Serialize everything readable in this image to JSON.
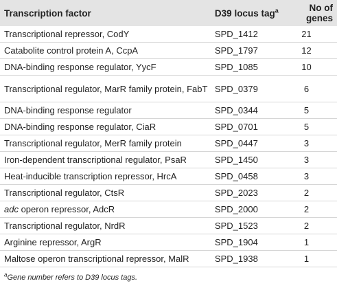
{
  "table": {
    "headers": {
      "tf": "Transcription factor",
      "locus": "D39 locus tag",
      "locus_sup": "a",
      "genes": "No of genes"
    },
    "rows": [
      {
        "tf": "Transcriptional repressor, CodY",
        "locus": "SPD_1412",
        "genes": "21"
      },
      {
        "tf": "Catabolite control protein A, CcpA",
        "locus": "SPD_1797",
        "genes": "12"
      },
      {
        "tf": "DNA-binding response regulator, YycF",
        "locus": "SPD_1085",
        "genes": "10"
      },
      {
        "tf": "Transcriptional regulator, MarR family protein, FabT",
        "locus": "SPD_0379",
        "genes": "6"
      },
      {
        "tf": "DNA-binding response regulator",
        "locus": "SPD_0344",
        "genes": "5"
      },
      {
        "tf": "DNA-binding response regulator, CiaR",
        "locus": "SPD_0701",
        "genes": "5"
      },
      {
        "tf": "Transcriptional regulator, MerR family protein",
        "locus": "SPD_0447",
        "genes": "3"
      },
      {
        "tf": "Iron-dependent transcriptional regulator, PsaR",
        "locus": "SPD_1450",
        "genes": "3"
      },
      {
        "tf": "Heat-inducible transcription repressor, HrcA",
        "locus": "SPD_0458",
        "genes": "3"
      },
      {
        "tf": "Transcriptional regulator, CtsR",
        "locus": "SPD_2023",
        "genes": "2"
      },
      {
        "tf_italic": "adc",
        "tf": " operon repressor, AdcR",
        "locus": "SPD_2000",
        "genes": "2"
      },
      {
        "tf": "Transcriptional regulator, NrdR",
        "locus": "SPD_1523",
        "genes": "2"
      },
      {
        "tf": "Arginine repressor, ArgR",
        "locus": "SPD_1904",
        "genes": "1"
      },
      {
        "tf": "Maltose operon transcriptional repressor, MalR",
        "locus": "SPD_1938",
        "genes": "1"
      }
    ]
  },
  "footnote": {
    "marker": "a",
    "text": "Gene number refers to D39 locus tags."
  }
}
